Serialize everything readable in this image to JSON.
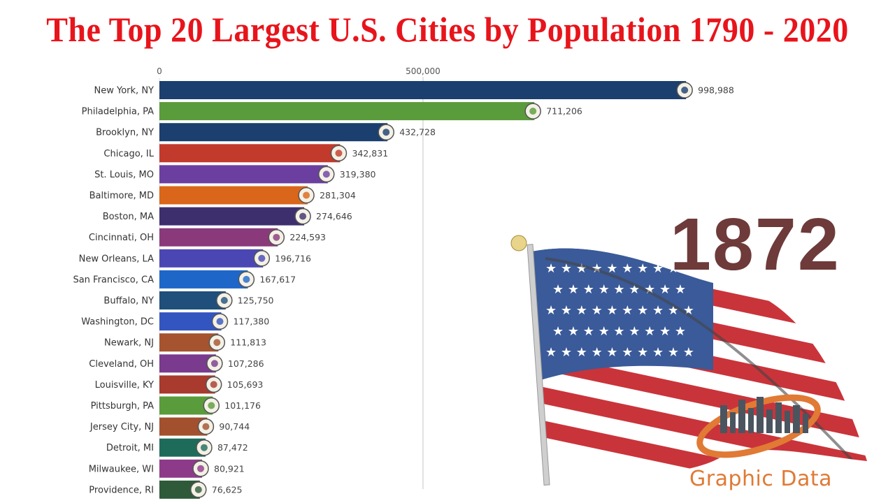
{
  "title": "The Top 20 Largest U.S. Cities by Population 1790 - 2020",
  "year": "1872",
  "brand": "Graphic Data",
  "colors": {
    "title": "#e8141b",
    "year": "#6e3a3a",
    "brand": "#e07a35"
  },
  "chart_data": {
    "type": "bar",
    "orientation": "horizontal",
    "title": "The Top 20 Largest U.S. Cities by Population 1790 - 2020",
    "xlim": [
      0,
      1150000
    ],
    "ticks": [
      {
        "value": 0,
        "label": "0"
      },
      {
        "value": 500000,
        "label": "500,000"
      }
    ],
    "categories": [
      "New York, NY",
      "Philadelphia, PA",
      "Brooklyn, NY",
      "Chicago, IL",
      "St. Louis, MO",
      "Baltimore, MD",
      "Boston, MA",
      "Cincinnati, OH",
      "New Orleans, LA",
      "San Francisco, CA",
      "Buffalo, NY",
      "Washington, DC",
      "Newark, NJ",
      "Cleveland, OH",
      "Louisville, KY",
      "Pittsburgh, PA",
      "Jersey City, NJ",
      "Detroit, MI",
      "Milwaukee, WI",
      "Providence, RI"
    ],
    "values": [
      998988,
      711206,
      432728,
      342831,
      319380,
      281304,
      274646,
      224593,
      196716,
      167617,
      125750,
      117380,
      111813,
      107286,
      105693,
      101176,
      90744,
      87472,
      80921,
      76625
    ],
    "value_labels": [
      "998,988",
      "711,206",
      "432,728",
      "342,831",
      "319,380",
      "281,304",
      "274,646",
      "224,593",
      "196,716",
      "167,617",
      "125,750",
      "117,380",
      "111,813",
      "107,286",
      "105,693",
      "101,176",
      "90,744",
      "87,472",
      "80,921",
      "76,625"
    ],
    "bar_colors": [
      "#1b3f6e",
      "#5a9b3b",
      "#1b3f6e",
      "#c23a2c",
      "#6b3fa0",
      "#d9661a",
      "#3d2f6e",
      "#8a3a7a",
      "#4a47b5",
      "#1f66c9",
      "#1f4f7a",
      "#3355c0",
      "#a5542f",
      "#7a3a8e",
      "#a83a2e",
      "#5a9b3b",
      "#a3502e",
      "#1e6b5a",
      "#8e3a8a",
      "#2e5a3a"
    ]
  }
}
